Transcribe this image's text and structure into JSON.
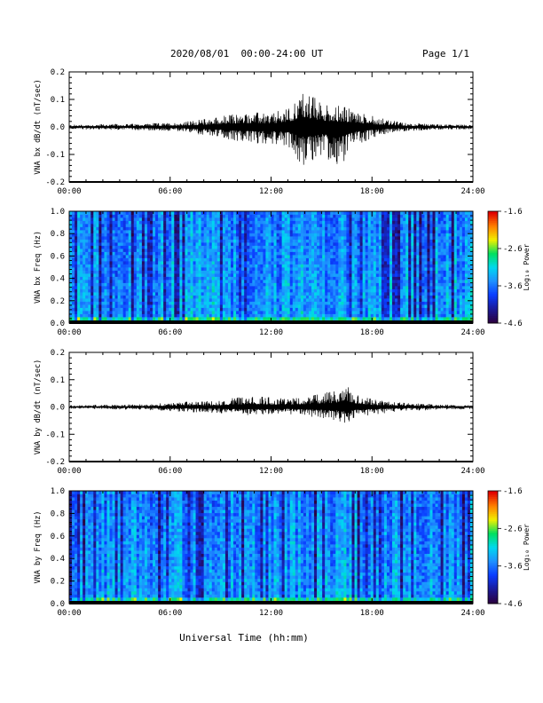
{
  "header": {
    "title": "2020/08/01  00:00-24:00 UT",
    "page": "Page 1/1"
  },
  "xlabel": "Universal Time (hh:mm)",
  "colors": {
    "trace": "#000000",
    "colormap": [
      "#2b0040",
      "#1a1a9a",
      "#0a3cff",
      "#1e90ff",
      "#00d8f0",
      "#00e060",
      "#f0f000",
      "#ff7f00",
      "#e00000"
    ]
  },
  "chart_data": [
    {
      "type": "line",
      "ylabel": "VNA bx dB/dt (nT/sec)",
      "xlim": [
        0,
        24
      ],
      "x_unit": "hours UT",
      "ylim": [
        -0.2,
        0.2
      ],
      "xticks": [
        "00:00",
        "06:00",
        "12:00",
        "18:00",
        "24:00"
      ],
      "yticks": [
        "-0.2",
        "-0.1",
        "0.0",
        "0.1",
        "0.2"
      ],
      "envelope": {
        "x": [
          0,
          2,
          4,
          6,
          7,
          8,
          9,
          10,
          11,
          12,
          13,
          14,
          15,
          16,
          17,
          18,
          19,
          20,
          21,
          22,
          24
        ],
        "upper": [
          0.008,
          0.01,
          0.012,
          0.015,
          0.02,
          0.03,
          0.04,
          0.05,
          0.055,
          0.05,
          0.07,
          0.14,
          0.09,
          0.08,
          0.06,
          0.04,
          0.025,
          0.015,
          0.012,
          0.01,
          0.008
        ],
        "lower": [
          -0.008,
          -0.01,
          -0.012,
          -0.015,
          -0.02,
          -0.03,
          -0.04,
          -0.055,
          -0.06,
          -0.06,
          -0.07,
          -0.15,
          -0.1,
          -0.155,
          -0.07,
          -0.04,
          -0.025,
          -0.015,
          -0.012,
          -0.01,
          -0.008
        ]
      }
    },
    {
      "type": "heatmap",
      "ylabel": "VNA bx Freq (Hz)",
      "xlim": [
        0,
        24
      ],
      "ylim": [
        0,
        1.0
      ],
      "xticks": [
        "00:00",
        "06:00",
        "12:00",
        "18:00",
        "24:00"
      ],
      "yticks": [
        "0.0",
        "0.2",
        "0.4",
        "0.6",
        "0.8",
        "1.0"
      ],
      "colorbar": {
        "label": "Log₁₀ Power",
        "range": [
          -4.6,
          -1.6
        ],
        "ticks": [
          "-1.6",
          "-2.6",
          "-3.6",
          "-4.6"
        ]
      },
      "low_freq_peak": {
        "x_start": 5,
        "x_end": 19,
        "peak_center": 14,
        "freq_max": 0.06
      }
    },
    {
      "type": "line",
      "ylabel": "VNA by dB/dt (nT/sec)",
      "xlim": [
        0,
        24
      ],
      "x_unit": "hours UT",
      "ylim": [
        -0.2,
        0.2
      ],
      "xticks": [
        "00:00",
        "06:00",
        "12:00",
        "18:00",
        "24:00"
      ],
      "yticks": [
        "-0.2",
        "-0.1",
        "0.0",
        "0.1",
        "0.2"
      ],
      "envelope": {
        "x": [
          0,
          2,
          4,
          5,
          6,
          7,
          8,
          9,
          10,
          11,
          12,
          13,
          14,
          15,
          16,
          16.5,
          17,
          18,
          19,
          20,
          22,
          24
        ],
        "upper": [
          0.006,
          0.008,
          0.01,
          0.012,
          0.015,
          0.02,
          0.02,
          0.025,
          0.035,
          0.04,
          0.035,
          0.03,
          0.04,
          0.05,
          0.06,
          0.085,
          0.05,
          0.03,
          0.02,
          0.015,
          0.01,
          0.008
        ],
        "lower": [
          -0.006,
          -0.008,
          -0.01,
          -0.012,
          -0.015,
          -0.02,
          -0.02,
          -0.025,
          -0.03,
          -0.03,
          -0.03,
          -0.025,
          -0.035,
          -0.04,
          -0.05,
          -0.07,
          -0.04,
          -0.03,
          -0.02,
          -0.015,
          -0.01,
          -0.008
        ]
      }
    },
    {
      "type": "heatmap",
      "ylabel": "VNA by Freq (Hz)",
      "xlim": [
        0,
        24
      ],
      "ylim": [
        0,
        1.0
      ],
      "xticks": [
        "00:00",
        "06:00",
        "12:00",
        "18:00",
        "24:00"
      ],
      "yticks": [
        "0.0",
        "0.2",
        "0.4",
        "0.6",
        "0.8",
        "1.0"
      ],
      "colorbar": {
        "label": "Log₁₀ Power",
        "range": [
          -4.6,
          -1.6
        ],
        "ticks": [
          "-1.6",
          "-2.6",
          "-3.6",
          "-4.6"
        ]
      },
      "low_freq_peak": {
        "x_start": 6,
        "x_end": 18,
        "peak_center": 12,
        "freq_max": 0.04
      }
    }
  ]
}
